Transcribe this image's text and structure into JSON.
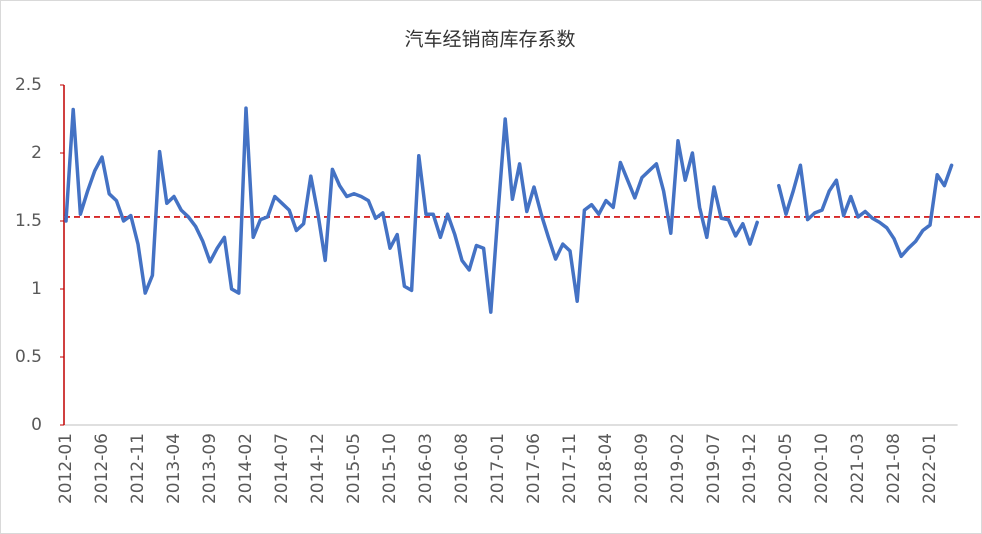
{
  "chart_data": {
    "type": "line",
    "title": "汽车经销商库存系数",
    "categories": [
      "2012-01",
      null,
      null,
      null,
      null,
      "2012-06",
      null,
      null,
      null,
      null,
      "2012-11",
      null,
      null,
      null,
      null,
      "2013-04",
      null,
      null,
      null,
      null,
      "2013-09",
      null,
      null,
      null,
      null,
      "2014-02",
      null,
      null,
      null,
      null,
      "2014-07",
      null,
      null,
      null,
      null,
      "2014-12",
      null,
      null,
      null,
      null,
      "2015-05",
      null,
      null,
      null,
      null,
      "2015-10",
      null,
      null,
      null,
      null,
      "2016-03",
      null,
      null,
      null,
      null,
      "2016-08",
      null,
      null,
      null,
      null,
      "2017-01",
      null,
      null,
      null,
      null,
      "2017-06",
      null,
      null,
      null,
      null,
      "2017-11",
      null,
      null,
      null,
      null,
      "2018-04",
      null,
      null,
      null,
      null,
      "2018-09",
      null,
      null,
      null,
      null,
      "2019-02",
      null,
      null,
      null,
      null,
      "2019-07",
      null,
      null,
      null,
      null,
      "2019-12",
      null,
      null,
      null,
      null,
      "2020-05",
      null,
      null,
      null,
      null,
      "2020-10",
      null,
      null,
      null,
      null,
      "2021-03",
      null,
      null,
      null,
      null,
      "2021-08",
      null,
      null,
      null,
      null,
      "2022-01",
      null,
      null,
      null
    ],
    "series": [
      {
        "color": "#4472c4",
        "values": [
          1.5,
          2.32,
          1.55,
          1.72,
          1.87,
          1.97,
          1.7,
          1.65,
          1.5,
          1.54,
          1.33,
          0.97,
          1.1,
          2.01,
          1.63,
          1.68,
          1.58,
          1.53,
          1.46,
          1.35,
          1.2,
          1.3,
          1.38,
          1.0,
          0.97,
          2.33,
          1.38,
          1.51,
          1.53,
          1.68,
          1.63,
          1.58,
          1.43,
          1.48,
          1.83,
          1.55,
          1.21,
          1.88,
          1.76,
          1.68,
          1.7,
          1.68,
          1.65,
          1.52,
          1.56,
          1.3,
          1.4,
          1.02,
          0.99,
          1.98,
          1.55,
          1.55,
          1.38,
          1.55,
          1.4,
          1.21,
          1.14,
          1.32,
          1.3,
          0.83,
          1.56,
          2.25,
          1.66,
          1.92,
          1.57,
          1.75,
          1.55,
          1.38,
          1.22,
          1.33,
          1.28,
          0.91,
          1.58,
          1.62,
          1.55,
          1.65,
          1.6,
          1.93,
          1.8,
          1.67,
          1.82,
          1.87,
          1.92,
          1.72,
          1.41,
          2.09,
          1.8,
          2.0,
          1.6,
          1.38,
          1.75,
          1.52,
          1.51,
          1.39,
          1.48,
          1.33,
          1.49,
          null,
          null,
          1.76,
          1.55,
          1.72,
          1.91,
          1.51,
          1.56,
          1.58,
          1.72,
          1.8,
          1.54,
          1.68,
          1.53,
          1.57,
          1.52,
          1.49,
          1.45,
          1.37,
          1.24,
          1.3,
          1.35,
          1.43,
          1.47,
          1.84,
          1.76,
          1.91
        ]
      }
    ],
    "reference_line": {
      "value": 1.53,
      "color": "#d62728"
    },
    "ylim": [
      0,
      2.5
    ],
    "yticks": [
      0,
      0.5,
      1,
      1.5,
      2,
      2.5
    ],
    "y_axis_color": "#c00000",
    "grid": false
  }
}
